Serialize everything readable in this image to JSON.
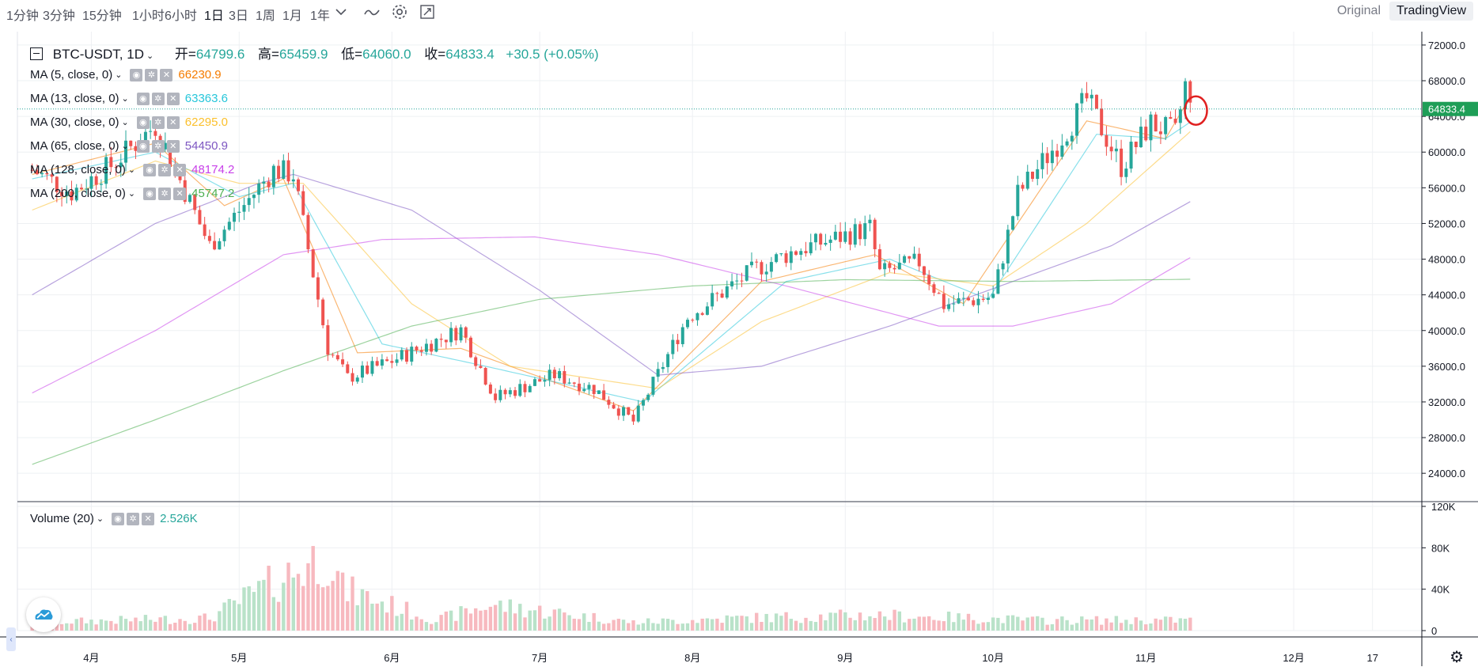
{
  "toolbar": {
    "intervals": [
      {
        "label": "1分钟",
        "active": false
      },
      {
        "label": "3分钟",
        "active": false
      },
      {
        "label": "15分钟",
        "active": false
      },
      {
        "label": "1小时",
        "active": false
      },
      {
        "label": "6小时",
        "active": false
      },
      {
        "label": "1日",
        "active": true
      },
      {
        "label": "3日",
        "active": false
      },
      {
        "label": "1周",
        "active": false
      },
      {
        "label": "1月",
        "active": false
      }
    ],
    "range_label": "1年",
    "icons": [
      "chevron-down-icon",
      "chart-style-icon",
      "settings-icon",
      "fullscreen-icon"
    ],
    "view_original": "Original",
    "view_tradingview": "TradingView"
  },
  "legend": {
    "symbol": "BTC-USDT, 1D",
    "open_label": "开=",
    "open": "64799.6",
    "high_label": "高=",
    "high": "65459.9",
    "low_label": "低=",
    "low": "64060.0",
    "close_label": "收=",
    "close": "64833.4",
    "change": "+30.5 (+0.05%)",
    "mas": [
      {
        "label": "MA (5, close, 0)",
        "value": "66230.9",
        "color": "#f57c00"
      },
      {
        "label": "MA (13, close, 0)",
        "value": "63363.6",
        "color": "#26c6da"
      },
      {
        "label": "MA (30, close, 0)",
        "value": "62295.0",
        "color": "#fbc02d"
      },
      {
        "label": "MA (65, close, 0)",
        "value": "54450.9",
        "color": "#7e57c2"
      },
      {
        "label": "MA (128, close, 0)",
        "value": "48174.2",
        "color": "#c840e9"
      },
      {
        "label": "MA (200, close, 0)",
        "value": "45747.2",
        "color": "#4caf50"
      }
    ],
    "volume_label": "Volume (20)",
    "volume_value": "2.526K"
  },
  "colors": {
    "up": "#26a69a",
    "down": "#ef5350",
    "up_volume": "#b9e2c9",
    "down_volume": "#f7b9bf",
    "grid": "#eef0f3",
    "last_price_bg": "#1e9e57"
  },
  "chart_data": {
    "type": "candlestick",
    "title": "BTC-USDT, 1D",
    "x_tick_labels": [
      "4月",
      "5月",
      "6月",
      "7月",
      "8月",
      "9月",
      "10月",
      "11月",
      "12月",
      "17"
    ],
    "y_tick_labels": [
      "24000.0",
      "28000.0",
      "32000.0",
      "36000.0",
      "40000.0",
      "44000.0",
      "48000.0",
      "52000.0",
      "56000.0",
      "60000.0",
      "64000.0",
      "68000.0",
      "72000.0"
    ],
    "ylim": [
      21000,
      73500
    ],
    "last_price": 64833.4,
    "last_price_label": "64833.4",
    "volume_tick_labels": [
      "0",
      "40K",
      "80K",
      "120K"
    ],
    "volume_ylim": [
      0,
      120
    ],
    "anchors_date_price": [
      [
        "2021-03-20",
        58000
      ],
      [
        "2021-03-28",
        55500
      ],
      [
        "2021-04-05",
        58500
      ],
      [
        "2021-04-14",
        63000
      ],
      [
        "2021-04-25",
        49500
      ],
      [
        "2021-05-08",
        58000
      ],
      [
        "2021-05-12",
        57500
      ],
      [
        "2021-05-19",
        38000
      ],
      [
        "2021-05-23",
        34700
      ],
      [
        "2021-06-01",
        36600
      ],
      [
        "2021-06-15",
        40100
      ],
      [
        "2021-06-22",
        32500
      ],
      [
        "2021-07-04",
        35000
      ],
      [
        "2021-07-12",
        33500
      ],
      [
        "2021-07-20",
        29800
      ],
      [
        "2021-07-31",
        41500
      ],
      [
        "2021-08-14",
        47000
      ],
      [
        "2021-08-22",
        49000
      ],
      [
        "2021-09-06",
        51500
      ],
      [
        "2021-09-08",
        46400
      ],
      [
        "2021-09-16",
        47700
      ],
      [
        "2021-09-21",
        42900
      ],
      [
        "2021-10-01",
        43800
      ],
      [
        "2021-10-06",
        55300
      ],
      [
        "2021-10-15",
        61700
      ],
      [
        "2021-10-20",
        65900
      ],
      [
        "2021-10-27",
        58400
      ],
      [
        "2021-11-02",
        63200
      ],
      [
        "2021-11-07",
        62000
      ],
      [
        "2021-11-09",
        67500
      ],
      [
        "2021-11-10",
        64800
      ]
    ],
    "volume_anchors": [
      [
        "2021-03-20",
        8
      ],
      [
        "2021-04-25",
        12
      ],
      [
        "2021-05-19",
        75
      ],
      [
        "2021-05-22",
        40
      ],
      [
        "2021-06-10",
        10
      ],
      [
        "2021-06-21",
        25
      ],
      [
        "2021-07-20",
        8
      ],
      [
        "2021-08-10",
        12
      ],
      [
        "2021-09-07",
        15
      ],
      [
        "2021-10-10",
        10
      ],
      [
        "2021-11-10",
        10
      ]
    ],
    "ma_series": [
      {
        "name": "MA (5, close, 0)",
        "anchors": [
          [
            "2021-03-20",
            57500
          ],
          [
            "2021-04-14",
            61000
          ],
          [
            "2021-04-28",
            54000
          ],
          [
            "2021-05-10",
            57000
          ],
          [
            "2021-05-25",
            37500
          ],
          [
            "2021-06-15",
            38000
          ],
          [
            "2021-07-20",
            31000
          ],
          [
            "2021-08-15",
            45500
          ],
          [
            "2021-09-07",
            48500
          ],
          [
            "2021-09-25",
            43000
          ],
          [
            "2021-10-20",
            63500
          ],
          [
            "2021-11-05",
            61500
          ],
          [
            "2021-11-10",
            66230.9
          ]
        ]
      },
      {
        "name": "MA (13, close, 0)",
        "anchors": [
          [
            "2021-03-20",
            57000
          ],
          [
            "2021-04-14",
            60000
          ],
          [
            "2021-05-01",
            55000
          ],
          [
            "2021-05-12",
            56500
          ],
          [
            "2021-05-30",
            38500
          ],
          [
            "2021-06-20",
            36000
          ],
          [
            "2021-07-22",
            32000
          ],
          [
            "2021-08-20",
            45500
          ],
          [
            "2021-09-10",
            48000
          ],
          [
            "2021-09-30",
            43500
          ],
          [
            "2021-10-22",
            62000
          ],
          [
            "2021-11-05",
            61500
          ],
          [
            "2021-11-10",
            63363.6
          ]
        ]
      },
      {
        "name": "MA (30, close, 0)",
        "anchors": [
          [
            "2021-03-20",
            53500
          ],
          [
            "2021-04-14",
            59000
          ],
          [
            "2021-05-01",
            56500
          ],
          [
            "2021-05-14",
            56500
          ],
          [
            "2021-06-05",
            43000
          ],
          [
            "2021-06-25",
            36000
          ],
          [
            "2021-07-25",
            33500
          ],
          [
            "2021-08-15",
            41000
          ],
          [
            "2021-09-10",
            46500
          ],
          [
            "2021-10-01",
            45000
          ],
          [
            "2021-10-20",
            52000
          ],
          [
            "2021-11-10",
            62295.0
          ]
        ]
      },
      {
        "name": "MA (65, close, 0)",
        "anchors": [
          [
            "2021-03-20",
            44000
          ],
          [
            "2021-04-14",
            52000
          ],
          [
            "2021-05-05",
            56500
          ],
          [
            "2021-05-12",
            57500
          ],
          [
            "2021-06-05",
            53500
          ],
          [
            "2021-07-01",
            44500
          ],
          [
            "2021-07-25",
            35000
          ],
          [
            "2021-08-15",
            36000
          ],
          [
            "2021-09-10",
            40500
          ],
          [
            "2021-10-05",
            45500
          ],
          [
            "2021-10-25",
            49500
          ],
          [
            "2021-11-10",
            54450.9
          ]
        ]
      },
      {
        "name": "MA (128, close, 0)",
        "anchors": [
          [
            "2021-03-20",
            33000
          ],
          [
            "2021-04-14",
            40000
          ],
          [
            "2021-05-10",
            48500
          ],
          [
            "2021-05-30",
            50200
          ],
          [
            "2021-06-30",
            50500
          ],
          [
            "2021-07-25",
            48500
          ],
          [
            "2021-08-20",
            45000
          ],
          [
            "2021-09-20",
            40500
          ],
          [
            "2021-10-05",
            40500
          ],
          [
            "2021-10-25",
            43000
          ],
          [
            "2021-11-10",
            48174.2
          ]
        ]
      },
      {
        "name": "MA (200, close, 0)",
        "anchors": [
          [
            "2021-03-20",
            25000
          ],
          [
            "2021-04-14",
            30000
          ],
          [
            "2021-05-10",
            35500
          ],
          [
            "2021-06-05",
            40500
          ],
          [
            "2021-07-01",
            43500
          ],
          [
            "2021-08-01",
            45000
          ],
          [
            "2021-09-01",
            45700
          ],
          [
            "2021-10-05",
            45500
          ],
          [
            "2021-11-10",
            45747.2
          ]
        ]
      }
    ]
  }
}
